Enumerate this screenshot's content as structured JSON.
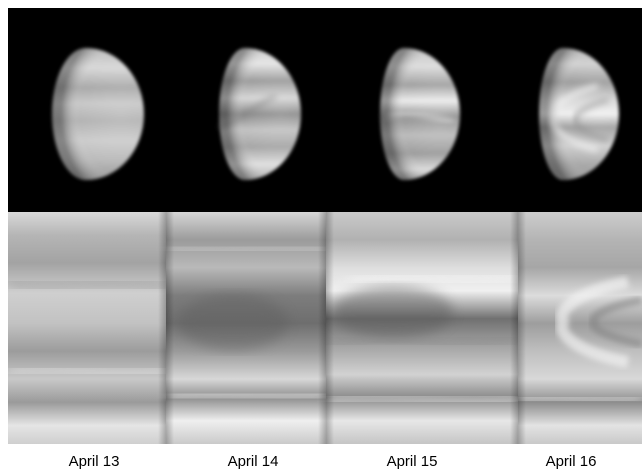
{
  "captions": [
    "April 13",
    "April 14",
    "April 15",
    "April 16"
  ]
}
